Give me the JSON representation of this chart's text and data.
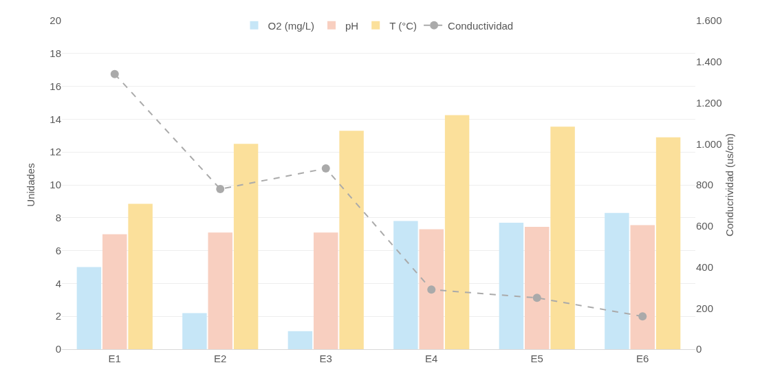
{
  "chart_data": {
    "type": "bar",
    "ylabel": "Unidades",
    "y2label": "Conducrividad (us/cm)",
    "categories": [
      "E1",
      "E2",
      "E3",
      "E4",
      "E5",
      "E6"
    ],
    "series": [
      {
        "name": "O2 (mg/L)",
        "color": "#c6e6f7",
        "values": [
          5.0,
          2.2,
          1.1,
          7.8,
          7.7,
          8.3
        ]
      },
      {
        "name": "pH",
        "color": "#f8cfc0",
        "values": [
          7.0,
          7.1,
          7.1,
          7.3,
          7.45,
          7.55
        ]
      },
      {
        "name": "T (°C)",
        "color": "#fbe09b",
        "values": [
          8.85,
          12.5,
          13.3,
          14.25,
          13.55,
          12.9
        ]
      },
      {
        "name": "Conductividad",
        "type": "line",
        "axis": "y2",
        "color": "#aaaaaa",
        "marker": "circle",
        "line_style": "dashed",
        "values": [
          1340,
          780,
          880,
          290,
          250,
          160
        ]
      }
    ],
    "ylim": [
      0,
      20
    ],
    "yticks": [
      0,
      2,
      4,
      6,
      8,
      10,
      12,
      14,
      16,
      18,
      20
    ],
    "y2lim": [
      0,
      1600
    ],
    "y2ticks": [
      0,
      200,
      400,
      600,
      800,
      {
        "value": 1000,
        "label": "1.000"
      },
      {
        "value": 1200,
        "label": "1.200"
      },
      {
        "value": 1400,
        "label": "1.400"
      },
      {
        "value": 1600,
        "label": "1.600"
      }
    ],
    "grid": "y",
    "legend": "top"
  }
}
